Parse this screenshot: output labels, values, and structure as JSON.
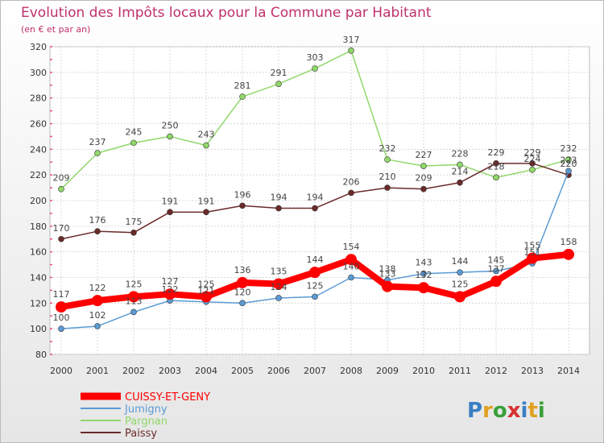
{
  "chart_data": {
    "type": "line",
    "title": "Evolution des Impôts locaux pour la Commune par Habitant",
    "subtitle": "(en € et par an)",
    "xlabel": "",
    "ylabel": "",
    "ylim": [
      80,
      320
    ],
    "yticks": [
      80,
      100,
      120,
      140,
      160,
      180,
      200,
      220,
      240,
      260,
      280,
      300,
      320
    ],
    "grid": true,
    "legend_position": "bottom-left",
    "categories": [
      "2000",
      "2001",
      "2002",
      "2003",
      "2004",
      "2005",
      "2006",
      "2007",
      "2008",
      "2009",
      "2010",
      "2011",
      "2012",
      "2013",
      "2014"
    ],
    "series": [
      {
        "name": "Pargnan",
        "color": "#90d86a",
        "values": [
          209,
          237,
          245,
          250,
          243,
          281,
          291,
          303,
          317,
          232,
          227,
          228,
          218,
          224,
          232
        ]
      },
      {
        "name": "Paissy",
        "color": "#6b2a2a",
        "values": [
          170,
          176,
          175,
          191,
          191,
          196,
          194,
          194,
          206,
          210,
          209,
          214,
          229,
          229,
          220
        ]
      },
      {
        "name": "Jumigny",
        "color": "#5b9bd5",
        "values": [
          100,
          102,
          113,
          122,
          121,
          120,
          124,
          125,
          140,
          138,
          143,
          144,
          145,
          151,
          223
        ]
      },
      {
        "name": "CUISSY-ET-GENY",
        "color": "#ff0000",
        "values": [
          117,
          122,
          125,
          127,
          125,
          136,
          135,
          144,
          154,
          133,
          132,
          125,
          137,
          155,
          158
        ]
      }
    ],
    "legend_order": [
      "CUISSY-ET-GENY",
      "Jumigny",
      "Pargnan",
      "Paissy"
    ]
  },
  "branding": {
    "letters": [
      "P",
      "r",
      "o",
      "x",
      "i",
      "t",
      "i"
    ]
  }
}
